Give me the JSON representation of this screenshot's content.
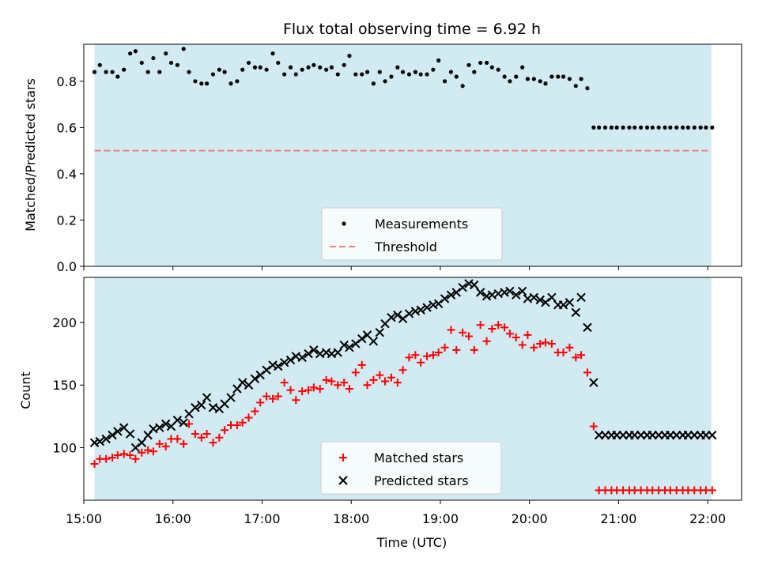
{
  "title": "Flux total observing time = 6.92 h",
  "colors": {
    "observing_band": "#add8e6",
    "measurement": "#000000",
    "threshold": "#f08080",
    "matched": "#ff0000",
    "predicted": "#000000"
  },
  "chart_data": [
    {
      "type": "scatter",
      "ylabel": "Matched/Predicted stars",
      "xlabel": "",
      "xlim": [
        15.0,
        22.38
      ],
      "ylim": [
        0,
        0.96
      ],
      "x_ticks": [
        "15:00",
        "16:00",
        "17:00",
        "18:00",
        "19:00",
        "20:00",
        "21:00",
        "22:00"
      ],
      "x_tick_values": [
        15,
        16,
        17,
        18,
        19,
        20,
        21,
        22
      ],
      "y_ticks": [
        "0.0",
        "0.2",
        "0.4",
        "0.6",
        "0.8"
      ],
      "y_tick_values": [
        0,
        0.2,
        0.4,
        0.6,
        0.8
      ],
      "shaded_span": [
        15.12,
        22.04
      ],
      "threshold": 0.5,
      "legend_position": "lower-center",
      "legend": {
        "measurements": "Measurements",
        "threshold": "Threshold"
      },
      "series": [
        {
          "name": "Measurements",
          "x": [
            15.12,
            15.18,
            15.25,
            15.32,
            15.38,
            15.45,
            15.52,
            15.58,
            15.65,
            15.72,
            15.78,
            15.85,
            15.92,
            15.98,
            16.05,
            16.12,
            16.18,
            16.25,
            16.32,
            16.38,
            16.45,
            16.52,
            16.58,
            16.65,
            16.72,
            16.78,
            16.85,
            16.92,
            16.98,
            17.05,
            17.12,
            17.18,
            17.25,
            17.32,
            17.38,
            17.45,
            17.52,
            17.58,
            17.65,
            17.72,
            17.78,
            17.85,
            17.92,
            17.98,
            18.05,
            18.12,
            18.18,
            18.25,
            18.32,
            18.38,
            18.45,
            18.52,
            18.58,
            18.65,
            18.72,
            18.78,
            18.85,
            18.92,
            18.98,
            19.05,
            19.12,
            19.18,
            19.25,
            19.32,
            19.38,
            19.45,
            19.52,
            19.58,
            19.65,
            19.72,
            19.78,
            19.85,
            19.92,
            19.98,
            20.05,
            20.12,
            20.18,
            20.25,
            20.32,
            20.38,
            20.45,
            20.52,
            20.58,
            20.65,
            20.72,
            20.78,
            20.85,
            20.92,
            20.98,
            21.05,
            21.12,
            21.18,
            21.25,
            21.32,
            21.38,
            21.45,
            21.52,
            21.58,
            21.65,
            21.72,
            21.78,
            21.85,
            21.92,
            21.98,
            22.05
          ],
          "y": [
            0.84,
            0.87,
            0.84,
            0.84,
            0.82,
            0.85,
            0.92,
            0.93,
            0.88,
            0.84,
            0.9,
            0.84,
            0.92,
            0.88,
            0.87,
            0.94,
            0.84,
            0.8,
            0.79,
            0.79,
            0.83,
            0.85,
            0.84,
            0.79,
            0.8,
            0.85,
            0.88,
            0.86,
            0.86,
            0.85,
            0.92,
            0.88,
            0.83,
            0.86,
            0.83,
            0.85,
            0.86,
            0.87,
            0.86,
            0.85,
            0.86,
            0.83,
            0.87,
            0.91,
            0.83,
            0.83,
            0.84,
            0.79,
            0.84,
            0.8,
            0.82,
            0.86,
            0.84,
            0.83,
            0.84,
            0.83,
            0.83,
            0.85,
            0.89,
            0.8,
            0.84,
            0.82,
            0.78,
            0.87,
            0.84,
            0.88,
            0.88,
            0.86,
            0.85,
            0.82,
            0.8,
            0.82,
            0.86,
            0.81,
            0.81,
            0.8,
            0.79,
            0.82,
            0.82,
            0.82,
            0.81,
            0.78,
            0.81,
            0.77,
            0.6,
            0.6,
            0.6,
            0.6,
            0.6,
            0.6,
            0.6,
            0.6,
            0.6,
            0.6,
            0.6,
            0.6,
            0.6,
            0.6,
            0.6,
            0.6,
            0.6,
            0.6,
            0.6,
            0.6,
            0.6
          ]
        }
      ]
    },
    {
      "type": "scatter",
      "ylabel": "Count",
      "xlabel": "Time (UTC)",
      "xlim": [
        15.0,
        22.38
      ],
      "ylim": [
        58,
        236
      ],
      "x_ticks": [
        "15:00",
        "16:00",
        "17:00",
        "18:00",
        "19:00",
        "20:00",
        "21:00",
        "22:00"
      ],
      "x_tick_values": [
        15,
        16,
        17,
        18,
        19,
        20,
        21,
        22
      ],
      "y_ticks": [
        "100",
        "150",
        "200"
      ],
      "y_tick_values": [
        100,
        150,
        200
      ],
      "shaded_span": [
        15.12,
        22.04
      ],
      "legend_position": "lower-center",
      "legend": {
        "matched": "Matched stars",
        "predicted": "Predicted stars"
      },
      "series": [
        {
          "name": "Matched stars",
          "x": [
            15.12,
            15.18,
            15.25,
            15.32,
            15.38,
            15.45,
            15.52,
            15.58,
            15.65,
            15.72,
            15.78,
            15.85,
            15.92,
            15.98,
            16.05,
            16.12,
            16.18,
            16.25,
            16.32,
            16.38,
            16.45,
            16.52,
            16.58,
            16.65,
            16.72,
            16.78,
            16.85,
            16.92,
            16.98,
            17.05,
            17.12,
            17.18,
            17.25,
            17.32,
            17.38,
            17.45,
            17.52,
            17.58,
            17.65,
            17.72,
            17.78,
            17.85,
            17.92,
            17.98,
            18.05,
            18.12,
            18.18,
            18.25,
            18.32,
            18.38,
            18.45,
            18.52,
            18.58,
            18.65,
            18.72,
            18.78,
            18.85,
            18.92,
            18.98,
            19.05,
            19.12,
            19.18,
            19.25,
            19.32,
            19.38,
            19.45,
            19.52,
            19.58,
            19.65,
            19.72,
            19.78,
            19.85,
            19.92,
            19.98,
            20.05,
            20.12,
            20.18,
            20.25,
            20.32,
            20.38,
            20.45,
            20.52,
            20.58,
            20.65,
            20.72,
            20.78,
            20.85,
            20.92,
            20.98,
            21.05,
            21.12,
            21.18,
            21.25,
            21.32,
            21.38,
            21.45,
            21.52,
            21.58,
            21.65,
            21.72,
            21.78,
            21.85,
            21.92,
            21.98,
            22.05
          ],
          "y": [
            87,
            91,
            91,
            92,
            94,
            95,
            94,
            91,
            96,
            98,
            97,
            103,
            101,
            107,
            107,
            103,
            119,
            111,
            108,
            111,
            104,
            108,
            114,
            118,
            118,
            120,
            124,
            129,
            136,
            141,
            139,
            141,
            152,
            146,
            138,
            145,
            146,
            148,
            147,
            154,
            153,
            150,
            152,
            147,
            160,
            166,
            150,
            154,
            158,
            153,
            156,
            152,
            162,
            172,
            174,
            168,
            173,
            174,
            176,
            180,
            194,
            178,
            192,
            189,
            178,
            198,
            185,
            195,
            198,
            196,
            191,
            188,
            182,
            190,
            180,
            183,
            184,
            183,
            176,
            176,
            180,
            172,
            174,
            160,
            117,
            66,
            66,
            66,
            66,
            66,
            66,
            66,
            66,
            66,
            66,
            66,
            66,
            66,
            66,
            66,
            66,
            66,
            66,
            66,
            66
          ]
        },
        {
          "name": "Predicted stars",
          "x": [
            15.12,
            15.18,
            15.25,
            15.32,
            15.38,
            15.45,
            15.52,
            15.58,
            15.65,
            15.72,
            15.78,
            15.85,
            15.92,
            15.98,
            16.05,
            16.12,
            16.18,
            16.25,
            16.32,
            16.38,
            16.45,
            16.52,
            16.58,
            16.65,
            16.72,
            16.78,
            16.85,
            16.92,
            16.98,
            17.05,
            17.12,
            17.18,
            17.25,
            17.32,
            17.38,
            17.45,
            17.52,
            17.58,
            17.65,
            17.72,
            17.78,
            17.85,
            17.92,
            17.98,
            18.05,
            18.12,
            18.18,
            18.25,
            18.32,
            18.38,
            18.45,
            18.52,
            18.58,
            18.65,
            18.72,
            18.78,
            18.85,
            18.92,
            18.98,
            19.05,
            19.12,
            19.18,
            19.25,
            19.32,
            19.38,
            19.45,
            19.52,
            19.58,
            19.65,
            19.72,
            19.78,
            19.85,
            19.92,
            19.98,
            20.05,
            20.12,
            20.18,
            20.25,
            20.32,
            20.38,
            20.45,
            20.52,
            20.58,
            20.65,
            20.72,
            20.78,
            20.85,
            20.92,
            20.98,
            21.05,
            21.12,
            21.18,
            21.25,
            21.32,
            21.38,
            21.45,
            21.52,
            21.58,
            21.65,
            21.72,
            21.78,
            21.85,
            21.92,
            21.98,
            22.05
          ],
          "y": [
            104,
            105,
            107,
            110,
            113,
            116,
            111,
            100,
            104,
            110,
            115,
            116,
            119,
            117,
            122,
            120,
            127,
            132,
            134,
            140,
            132,
            131,
            135,
            140,
            147,
            152,
            150,
            155,
            158,
            162,
            166,
            165,
            168,
            170,
            173,
            172,
            175,
            178,
            175,
            176,
            175,
            176,
            182,
            180,
            183,
            187,
            190,
            185,
            192,
            199,
            204,
            206,
            203,
            207,
            209,
            210,
            212,
            214,
            215,
            219,
            222,
            224,
            228,
            231,
            230,
            224,
            221,
            222,
            223,
            224,
            225,
            222,
            225,
            219,
            220,
            218,
            216,
            220,
            214,
            214,
            216,
            208,
            220,
            196,
            152,
            110,
            110,
            110,
            110,
            110,
            110,
            110,
            110,
            110,
            110,
            110,
            110,
            110,
            110,
            110,
            110,
            110,
            110,
            110,
            110
          ]
        }
      ]
    }
  ]
}
